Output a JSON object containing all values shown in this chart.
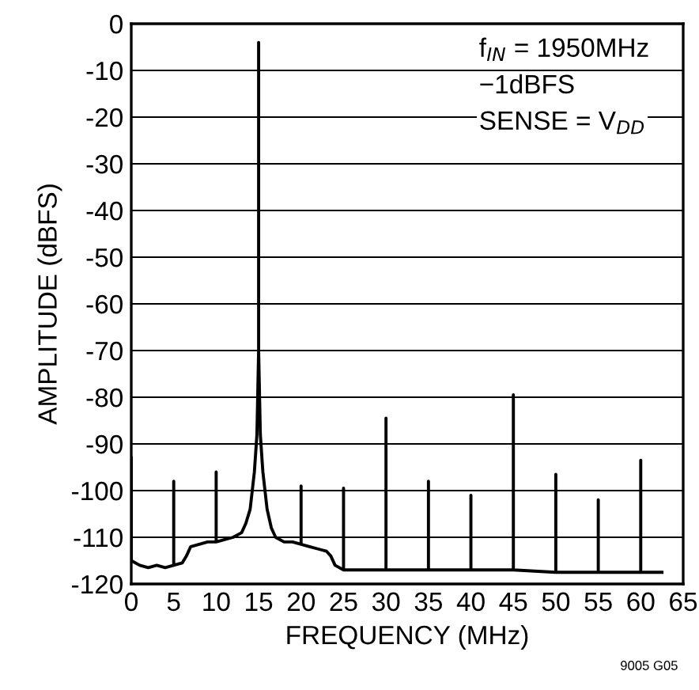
{
  "chart_data": {
    "type": "line",
    "xlabel": "FREQUENCY (MHz)",
    "ylabel": "AMPLITUDE (dBFS)",
    "x": [
      0,
      0,
      1,
      2,
      3,
      4,
      5,
      5,
      5,
      6,
      6.5,
      7,
      8,
      9,
      10,
      10,
      10,
      11,
      12,
      13,
      13.5,
      14,
      14.5,
      14.8,
      15,
      15,
      15,
      15.2,
      15.5,
      16,
      16.5,
      17,
      18,
      19,
      20,
      20,
      20,
      21,
      22,
      23,
      23.5,
      24,
      25,
      25,
      25,
      27,
      30,
      30,
      30,
      35,
      35,
      35,
      40,
      40,
      40,
      45,
      45,
      45,
      50,
      50,
      50,
      55,
      55,
      55,
      60,
      60,
      60,
      62.5
    ],
    "series": [
      {
        "color": "#000000",
        "values": [
          -93,
          -115,
          -116,
          -116.5,
          -116,
          -116.5,
          -116,
          -98,
          -116,
          -115.5,
          -114,
          -112,
          -111.5,
          -111,
          -111,
          -96,
          -111,
          -110.5,
          -110,
          -109,
          -107,
          -104,
          -96,
          -88,
          -70,
          -4,
          -70,
          -88,
          -96,
          -104,
          -108,
          -110,
          -111,
          -111,
          -111.5,
          -99,
          -111.5,
          -112,
          -112.5,
          -113,
          -114,
          -116,
          -117,
          -99.5,
          -117,
          -117,
          -117,
          -84.5,
          -117,
          -117,
          -98,
          -117,
          -117,
          -101,
          -117,
          -117,
          -79.5,
          -117,
          -117.5,
          -96.5,
          -117.5,
          -117.5,
          -102,
          -117.5,
          -117.5,
          -93.5,
          -117.5,
          -117.5
        ]
      }
    ],
    "xlim": [
      0,
      65
    ],
    "xticks": [
      0,
      5,
      10,
      15,
      20,
      25,
      30,
      35,
      40,
      45,
      50,
      55,
      60,
      65
    ],
    "ylim": [
      -120,
      0
    ],
    "yticks": [
      -120,
      -110,
      -100,
      -90,
      -80,
      -70,
      -60,
      -50,
      -40,
      -30,
      -20,
      -10,
      0
    ],
    "grid": "y",
    "line_style": "solid",
    "marker": "none",
    "annotations": [
      "f$_{IN}$ = 1950MHz",
      "−1dBFS",
      "SENSE = V$_{DD}$",
      "9005 G05"
    ]
  }
}
